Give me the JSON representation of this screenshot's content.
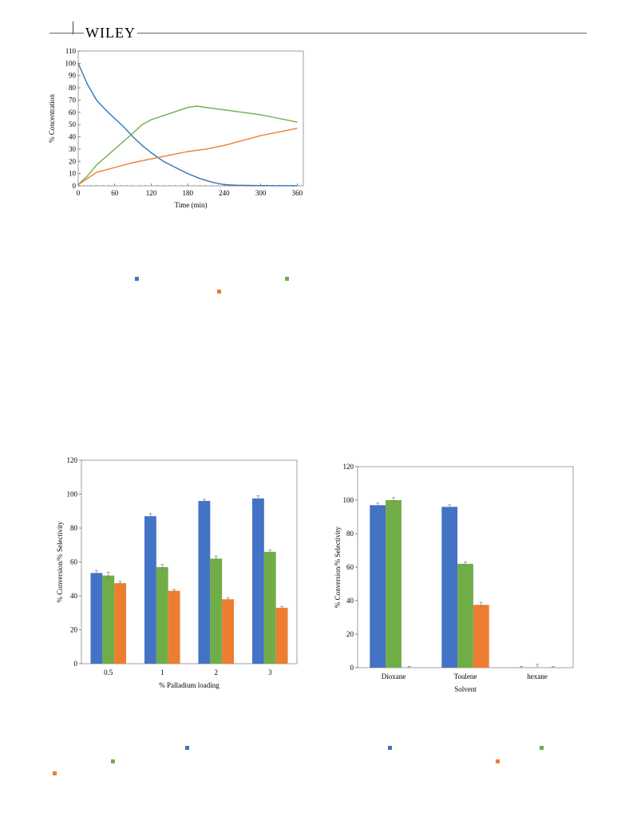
{
  "header": {
    "publisher": "WILEY"
  },
  "colors": {
    "blue": "#2E75B6",
    "orange": "#ED7D31",
    "green": "#70AD47",
    "bar_blue": "#4472C4"
  },
  "chart_data": [
    {
      "type": "line",
      "xlabel": "Time (min)",
      "ylabel": "% Concentration",
      "xlim": [
        0,
        370
      ],
      "ylim": [
        0,
        110
      ],
      "xticks": [
        0,
        60,
        120,
        180,
        240,
        300,
        360
      ],
      "yticks": [
        0,
        10,
        20,
        30,
        40,
        50,
        60,
        70,
        80,
        90,
        100,
        110
      ],
      "grid": false,
      "series": [
        {
          "color": "#2E75B6",
          "x": [
            0,
            15,
            30,
            45,
            60,
            75,
            90,
            105,
            120,
            140,
            160,
            180,
            200,
            220,
            240,
            260,
            280,
            300,
            330,
            360
          ],
          "y": [
            100,
            83,
            70,
            62,
            55,
            48,
            40,
            33,
            27,
            20,
            15,
            10,
            6,
            3,
            1,
            0.5,
            0.3,
            0.2,
            0.1,
            0.1
          ]
        },
        {
          "color": "#70AD47",
          "x": [
            0,
            15,
            30,
            60,
            90,
            105,
            120,
            150,
            180,
            195,
            210,
            240,
            270,
            300,
            330,
            360
          ],
          "y": [
            1,
            8,
            17,
            30,
            43,
            50,
            54,
            59,
            64,
            65,
            64,
            62,
            60,
            58,
            55,
            52
          ]
        },
        {
          "color": "#ED7D31",
          "x": [
            0,
            15,
            30,
            60,
            90,
            120,
            150,
            180,
            210,
            240,
            270,
            300,
            330,
            360
          ],
          "y": [
            1,
            6,
            11,
            15,
            19,
            22,
            25,
            28,
            30,
            33,
            37,
            41,
            44,
            47
          ]
        }
      ]
    },
    {
      "type": "bar",
      "xlabel": "% Palladium loading",
      "ylabel": "% Conversion/% Selectivity",
      "ylim": [
        0,
        120
      ],
      "yticks": [
        0,
        20,
        40,
        60,
        80,
        100,
        120
      ],
      "categories": [
        "0.5",
        "1",
        "2",
        "3"
      ],
      "series": [
        {
          "color": "#4472C4",
          "values": [
            53.5,
            87,
            96,
            97.5
          ],
          "errors": [
            1.5,
            1.5,
            1,
            1.5
          ]
        },
        {
          "color": "#70AD47",
          "values": [
            52,
            57,
            62,
            66
          ],
          "errors": [
            2,
            1.5,
            1.5,
            1.2
          ]
        },
        {
          "color": "#ED7D31",
          "values": [
            47.5,
            43,
            38,
            33
          ],
          "errors": [
            1,
            0.8,
            0.8,
            0.6
          ]
        }
      ]
    },
    {
      "type": "bar",
      "xlabel": "Solvent",
      "ylabel": "% Conversion/% Selectivity",
      "ylim": [
        0,
        120
      ],
      "yticks": [
        0,
        20,
        40,
        60,
        80,
        100,
        120
      ],
      "categories": [
        "Dioxane",
        "Toulene",
        "hexane"
      ],
      "series": [
        {
          "color": "#4472C4",
          "values": [
            97,
            96,
            0
          ],
          "errors": [
            1.2,
            1.2,
            0.8
          ]
        },
        {
          "color": "#70AD47",
          "values": [
            100,
            62,
            0
          ],
          "errors": [
            1.5,
            1.2,
            2
          ]
        },
        {
          "color": "#ED7D31",
          "values": [
            0,
            37.5,
            0
          ],
          "errors": [
            0.8,
            1.5,
            0.6
          ]
        }
      ]
    }
  ],
  "legend_markers": [
    {
      "name": "legend-marker-blue",
      "color": "#4472C4"
    },
    {
      "name": "legend-marker-green",
      "color": "#70AD47"
    },
    {
      "name": "legend-marker-orange",
      "color": "#ED7D31"
    },
    {
      "name": "legend-marker-blue",
      "color": "#4472C4"
    },
    {
      "name": "legend-marker-green",
      "color": "#70AD47"
    },
    {
      "name": "legend-marker-orange",
      "color": "#ED7D31"
    },
    {
      "name": "legend-marker-blue",
      "color": "#4472C4"
    },
    {
      "name": "legend-marker-green",
      "color": "#70AD47"
    },
    {
      "name": "legend-marker-orange",
      "color": "#ED7D31"
    }
  ]
}
